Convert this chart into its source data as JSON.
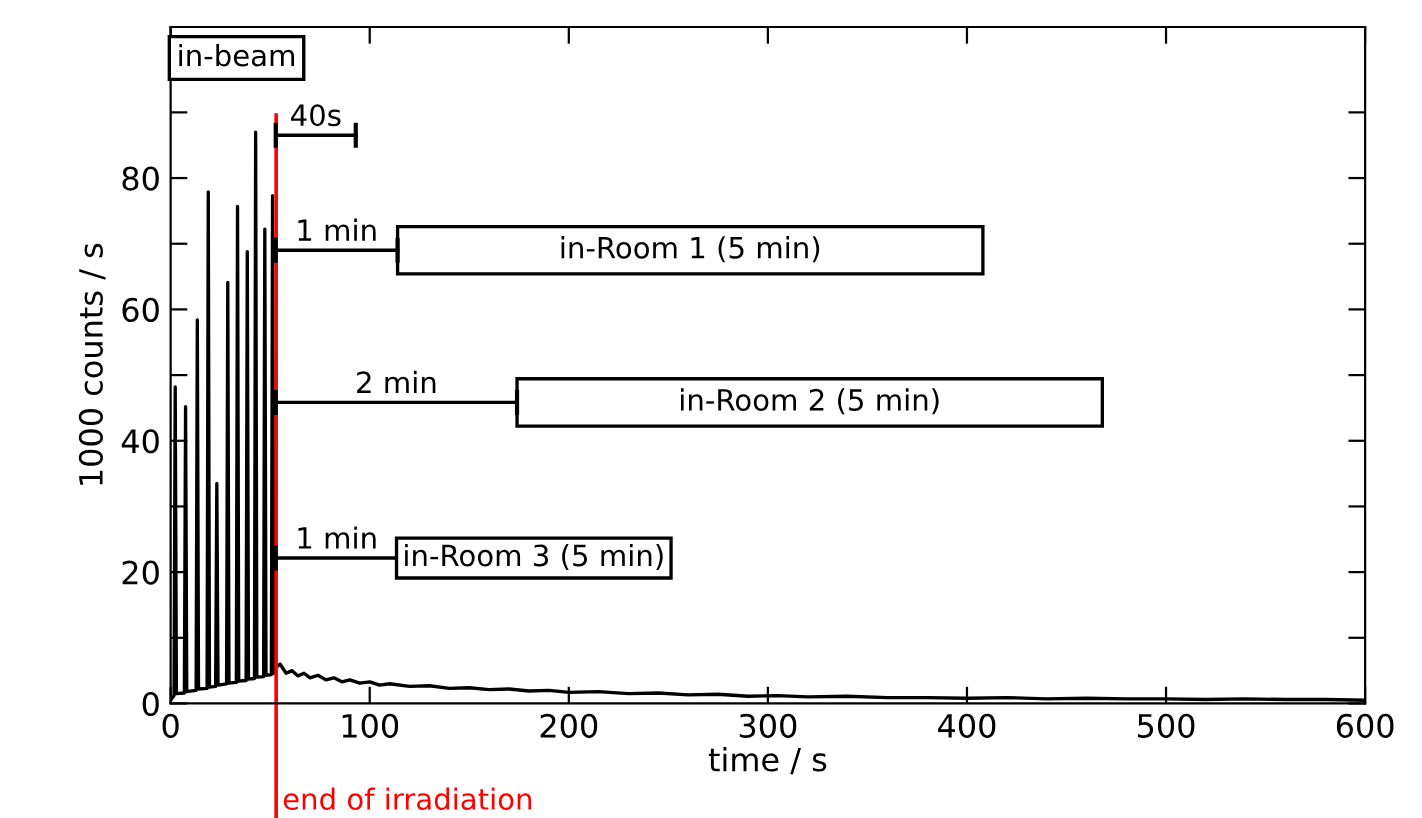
{
  "chart_data": {
    "type": "line",
    "xlabel": "time / s",
    "ylabel": "1000 counts / s",
    "xlim": [
      0,
      600
    ],
    "ylim": [
      0,
      103
    ],
    "xticks": [
      0,
      100,
      200,
      300,
      400,
      500,
      600
    ],
    "yticks": [
      0,
      {
        "value": 10,
        "label": null
      },
      20,
      {
        "value": 30,
        "label": null
      },
      40,
      {
        "value": 50,
        "label": null
      },
      60,
      {
        "value": 70,
        "label": null
      },
      80,
      {
        "value": 90,
        "label": null
      }
    ],
    "grid": false,
    "series": [
      {
        "color": "#000000",
        "x": [
          0,
          1.7,
          2.3,
          2.9,
          6.9,
          7.5,
          8.1,
          12.8,
          13.4,
          14.0,
          18.3,
          18.9,
          19.5,
          22.6,
          23.2,
          23.8,
          28.1,
          28.7,
          29.3,
          33.0,
          33.6,
          34.2,
          37.9,
          38.5,
          39.1,
          42.1,
          42.7,
          43.3,
          46.7,
          47.3,
          47.9,
          50.6,
          51.2,
          51.8,
          53,
          55,
          58,
          61,
          64,
          67,
          70,
          74,
          78,
          82,
          86,
          90,
          95,
          100,
          105,
          110,
          120,
          130,
          140,
          150,
          160,
          170,
          180,
          190,
          200,
          215,
          230,
          245,
          260,
          275,
          290,
          305,
          320,
          340,
          360,
          380,
          400,
          420,
          440,
          460,
          480,
          500,
          520,
          540,
          560,
          580,
          600
        ],
        "values": [
          0.5,
          1.2,
          48.2,
          1.5,
          1.6,
          45.2,
          1.8,
          2.0,
          58.4,
          2.2,
          2.3,
          77.9,
          2.5,
          2.6,
          33.5,
          2.8,
          3.0,
          64.1,
          3.1,
          3.2,
          75.7,
          3.4,
          3.5,
          68.8,
          3.7,
          3.8,
          87.0,
          4.0,
          4.1,
          72.2,
          4.3,
          4.4,
          77.3,
          4.6,
          5.5,
          6.0,
          4.6,
          5.0,
          4.2,
          4.6,
          3.9,
          4.3,
          3.6,
          3.9,
          3.3,
          3.6,
          3.1,
          3.3,
          2.8,
          3.0,
          2.6,
          2.7,
          2.3,
          2.4,
          2.1,
          2.2,
          1.9,
          2.0,
          1.7,
          1.8,
          1.5,
          1.6,
          1.3,
          1.4,
          1.1,
          1.2,
          1.0,
          1.1,
          0.9,
          0.9,
          0.8,
          0.9,
          0.7,
          0.8,
          0.7,
          0.7,
          0.6,
          0.7,
          0.6,
          0.6,
          0.5
        ]
      }
    ],
    "ref_lines": [
      {
        "axis": "x",
        "value": 53,
        "label": "end of irradiation",
        "color": "#ff0000"
      }
    ],
    "annotations": [
      "in-beam",
      "40s",
      "1 min",
      "in-Room 1 (5 min)",
      "2 min",
      "in-Room 2 (5 min)",
      "1 min",
      "in-Room 3 (5 min)"
    ]
  }
}
